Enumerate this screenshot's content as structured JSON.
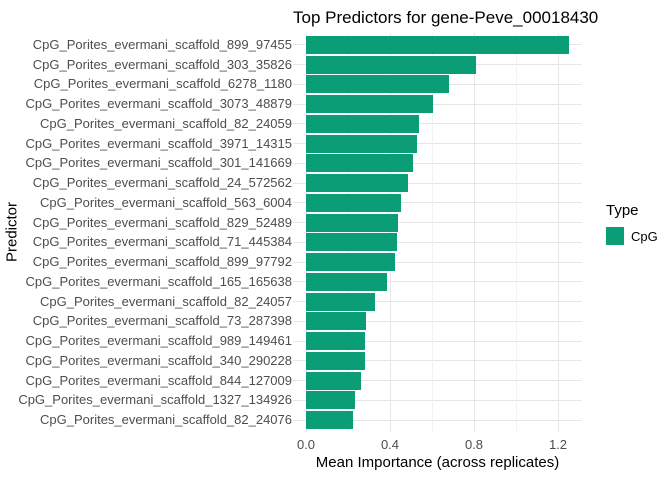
{
  "title": "Top Predictors for gene-Peve_00018430",
  "legend": {
    "title": "Type",
    "items": [
      {
        "label": "CpG",
        "color": "#0b9d75"
      }
    ]
  },
  "colors": {
    "bar": "#0b9d75",
    "grid_major": "#e6e6e6",
    "grid_minor": "#f2f2f2",
    "axis_text": "#4d4d4d",
    "title_text": "#000000",
    "background": "#ffffff"
  },
  "chart_data": {
    "type": "bar",
    "orientation": "horizontal",
    "title": "Top Predictors for gene-Peve_00018430",
    "xlabel": "Mean Importance (across replicates)",
    "ylabel": "Predictor",
    "legend_position": "right",
    "grid": true,
    "xlim": [
      -0.06,
      1.31
    ],
    "xticks": [
      0.0,
      0.4,
      0.8,
      1.2
    ],
    "xtick_labels": [
      "0.0",
      "0.4",
      "0.8",
      "1.2"
    ],
    "minor_ticks": [
      0.2,
      0.6,
      1.0
    ],
    "series": [
      {
        "name": "CpG",
        "color": "#0b9d75",
        "values": [
          1.25,
          0.81,
          0.68,
          0.605,
          0.54,
          0.53,
          0.51,
          0.485,
          0.45,
          0.44,
          0.435,
          0.425,
          0.385,
          0.33,
          0.285,
          0.28,
          0.283,
          0.263,
          0.235,
          0.225
        ]
      }
    ],
    "categories": [
      "CpG_Porites_evermani_scaffold_899_97455",
      "CpG_Porites_evermani_scaffold_303_35826",
      "CpG_Porites_evermani_scaffold_6278_1180",
      "CpG_Porites_evermani_scaffold_3073_48879",
      "CpG_Porites_evermani_scaffold_82_24059",
      "CpG_Porites_evermani_scaffold_3971_14315",
      "CpG_Porites_evermani_scaffold_301_141669",
      "CpG_Porites_evermani_scaffold_24_572562",
      "CpG_Porites_evermani_scaffold_563_6004",
      "CpG_Porites_evermani_scaffold_829_52489",
      "CpG_Porites_evermani_scaffold_71_445384",
      "CpG_Porites_evermani_scaffold_899_97792",
      "CpG_Porites_evermani_scaffold_165_165638",
      "CpG_Porites_evermani_scaffold_82_24057",
      "CpG_Porites_evermani_scaffold_73_287398",
      "CpG_Porites_evermani_scaffold_989_149461",
      "CpG_Porites_evermani_scaffold_340_290228",
      "CpG_Porites_evermani_scaffold_844_127009",
      "CpG_Porites_evermani_scaffold_1327_134926",
      "CpG_Porites_evermani_scaffold_82_24076"
    ]
  }
}
